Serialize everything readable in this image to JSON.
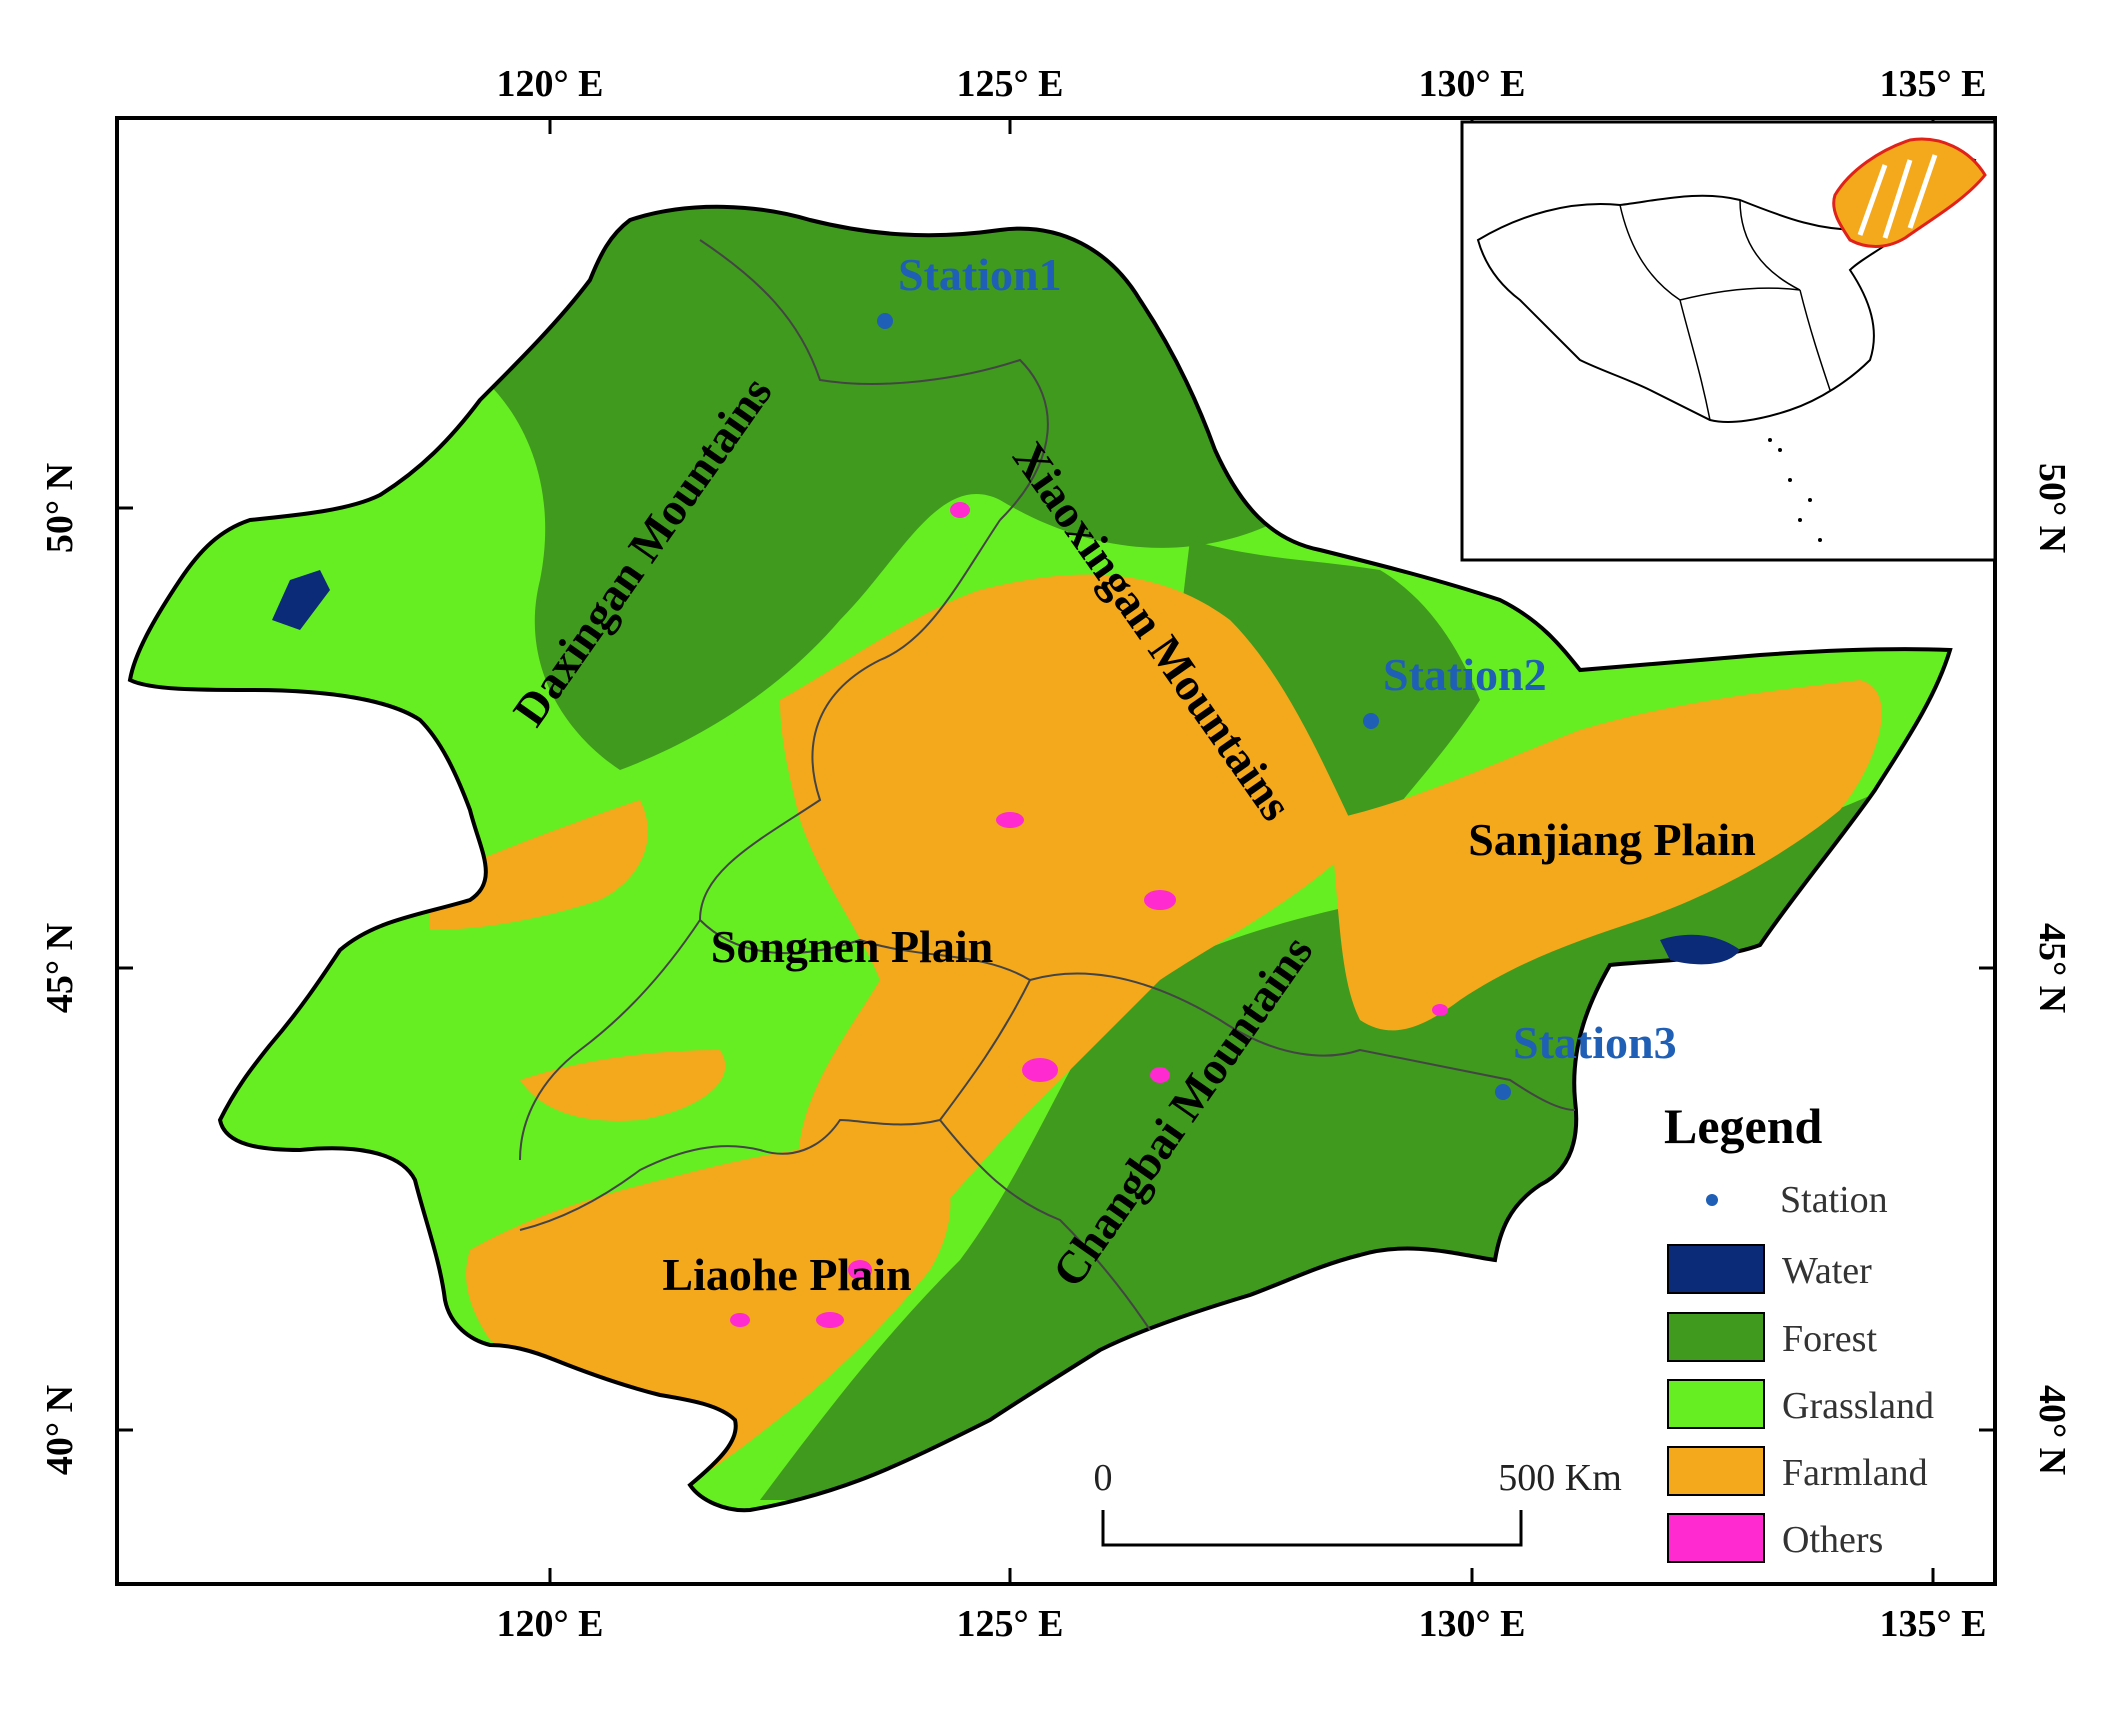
{
  "axes": {
    "lon_labels": [
      "120° E",
      "125° E",
      "130° E",
      "135° E"
    ],
    "lat_labels": [
      "50° N",
      "45° N",
      "40° N"
    ]
  },
  "regions": [
    "Daxingan Mountains",
    "Xiaoxingan Mountains",
    "Sanjiang Plain",
    "Songnen Plain",
    "Changbai Mountains",
    "Liaohe Plain"
  ],
  "stations": [
    "Station1",
    "Station2",
    "Station3"
  ],
  "legend": {
    "title": "Legend",
    "station_label": "Station",
    "items": [
      {
        "label": "Water",
        "color": "#0b2a78"
      },
      {
        "label": "Forest",
        "color": "#3f9a1e"
      },
      {
        "label": "Grassland",
        "color": "#66ee22"
      },
      {
        "label": "Farmland",
        "color": "#f4a81c"
      },
      {
        "label": "Others",
        "color": "#ff2ad0"
      }
    ]
  },
  "scale_bar": {
    "start": "0",
    "end": "500 Km"
  },
  "colors": {
    "station": "#1f5fb5",
    "inset_highlight": "#f4a81c",
    "inset_highlight_edge": "#e0221a"
  }
}
